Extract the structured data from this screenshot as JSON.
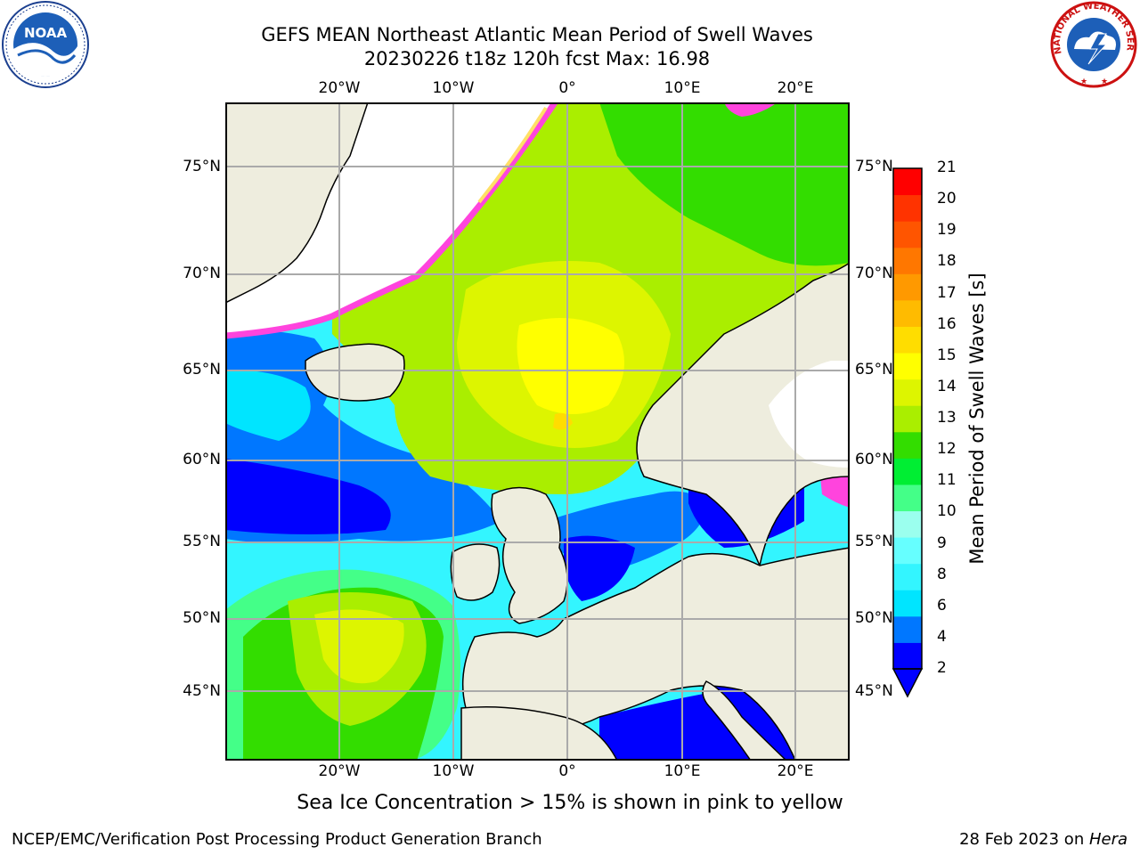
{
  "title": {
    "line1": "GEFS MEAN Northeast Atlantic Mean Period of Swell Waves",
    "line2": "20230226 t18z 120h fcst   Max: 16.98"
  },
  "map": {
    "lon_labels": [
      "20°W",
      "10°W",
      "0°",
      "10°E",
      "20°E"
    ],
    "lat_labels": [
      "75°N",
      "70°N",
      "65°N",
      "60°N",
      "55°N",
      "50°N",
      "45°N"
    ],
    "colors": {
      "land": "#eeedde",
      "ice_pink": "#ff44dd",
      "ice_yellow": "#ffe066",
      "grid": "#aaaaaa",
      "no_data": "#ffffff"
    }
  },
  "colorbar": {
    "label": "Mean Period of Swell Waves [s]",
    "ticks": [
      "21",
      "20",
      "19",
      "18",
      "17",
      "16",
      "15",
      "14",
      "13",
      "12",
      "11",
      "10",
      "9",
      "8",
      "6",
      "4",
      "2"
    ],
    "colors": [
      "#0000ff",
      "#0077ff",
      "#00e5ff",
      "#33f5ff",
      "#66ffff",
      "#9bffee",
      "#44ff88",
      "#00ee33",
      "#33dd00",
      "#aaee00",
      "#ddf500",
      "#ffff00",
      "#ffdd00",
      "#ffbb00",
      "#ff9900",
      "#ff7700",
      "#ff5500",
      "#ff3300",
      "#ff0000"
    ]
  },
  "logos": {
    "noaa_text": "NOAA",
    "nws_text": "NATIONAL WEATHER SERVICE"
  },
  "footer": {
    "note": "Sea Ice Concentration > 15% is shown in pink to yellow",
    "left": "NCEP/EMC/Verification Post Processing Product Generation Branch",
    "date": "28 Feb 2023 on ",
    "host": "Hera"
  }
}
